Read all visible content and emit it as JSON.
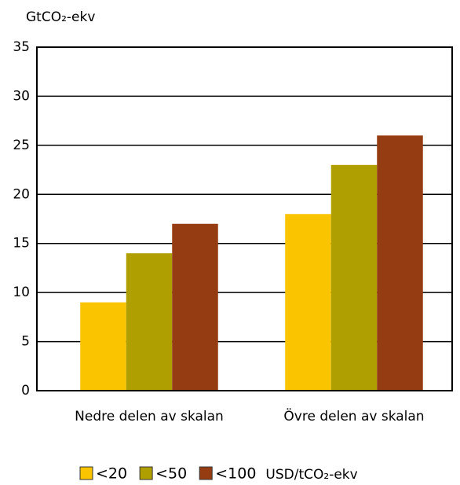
{
  "chart_data": {
    "type": "bar",
    "y_label": "GtCO₂-ekv",
    "categories": [
      "Nedre delen av skalan",
      "Övre delen av skalan"
    ],
    "series": [
      {
        "name": "<20",
        "color": "#fbc400",
        "values": [
          9,
          18
        ]
      },
      {
        "name": "<50",
        "color": "#b09f00",
        "values": [
          14,
          23
        ]
      },
      {
        "name": "<100",
        "color": "#963c12",
        "values": [
          17,
          26
        ]
      }
    ],
    "legend_title": "USD/tCO₂-ekv",
    "ylim": [
      0,
      35
    ],
    "yticks": [
      0,
      5,
      10,
      15,
      20,
      25,
      30,
      35
    ],
    "grid": true
  }
}
